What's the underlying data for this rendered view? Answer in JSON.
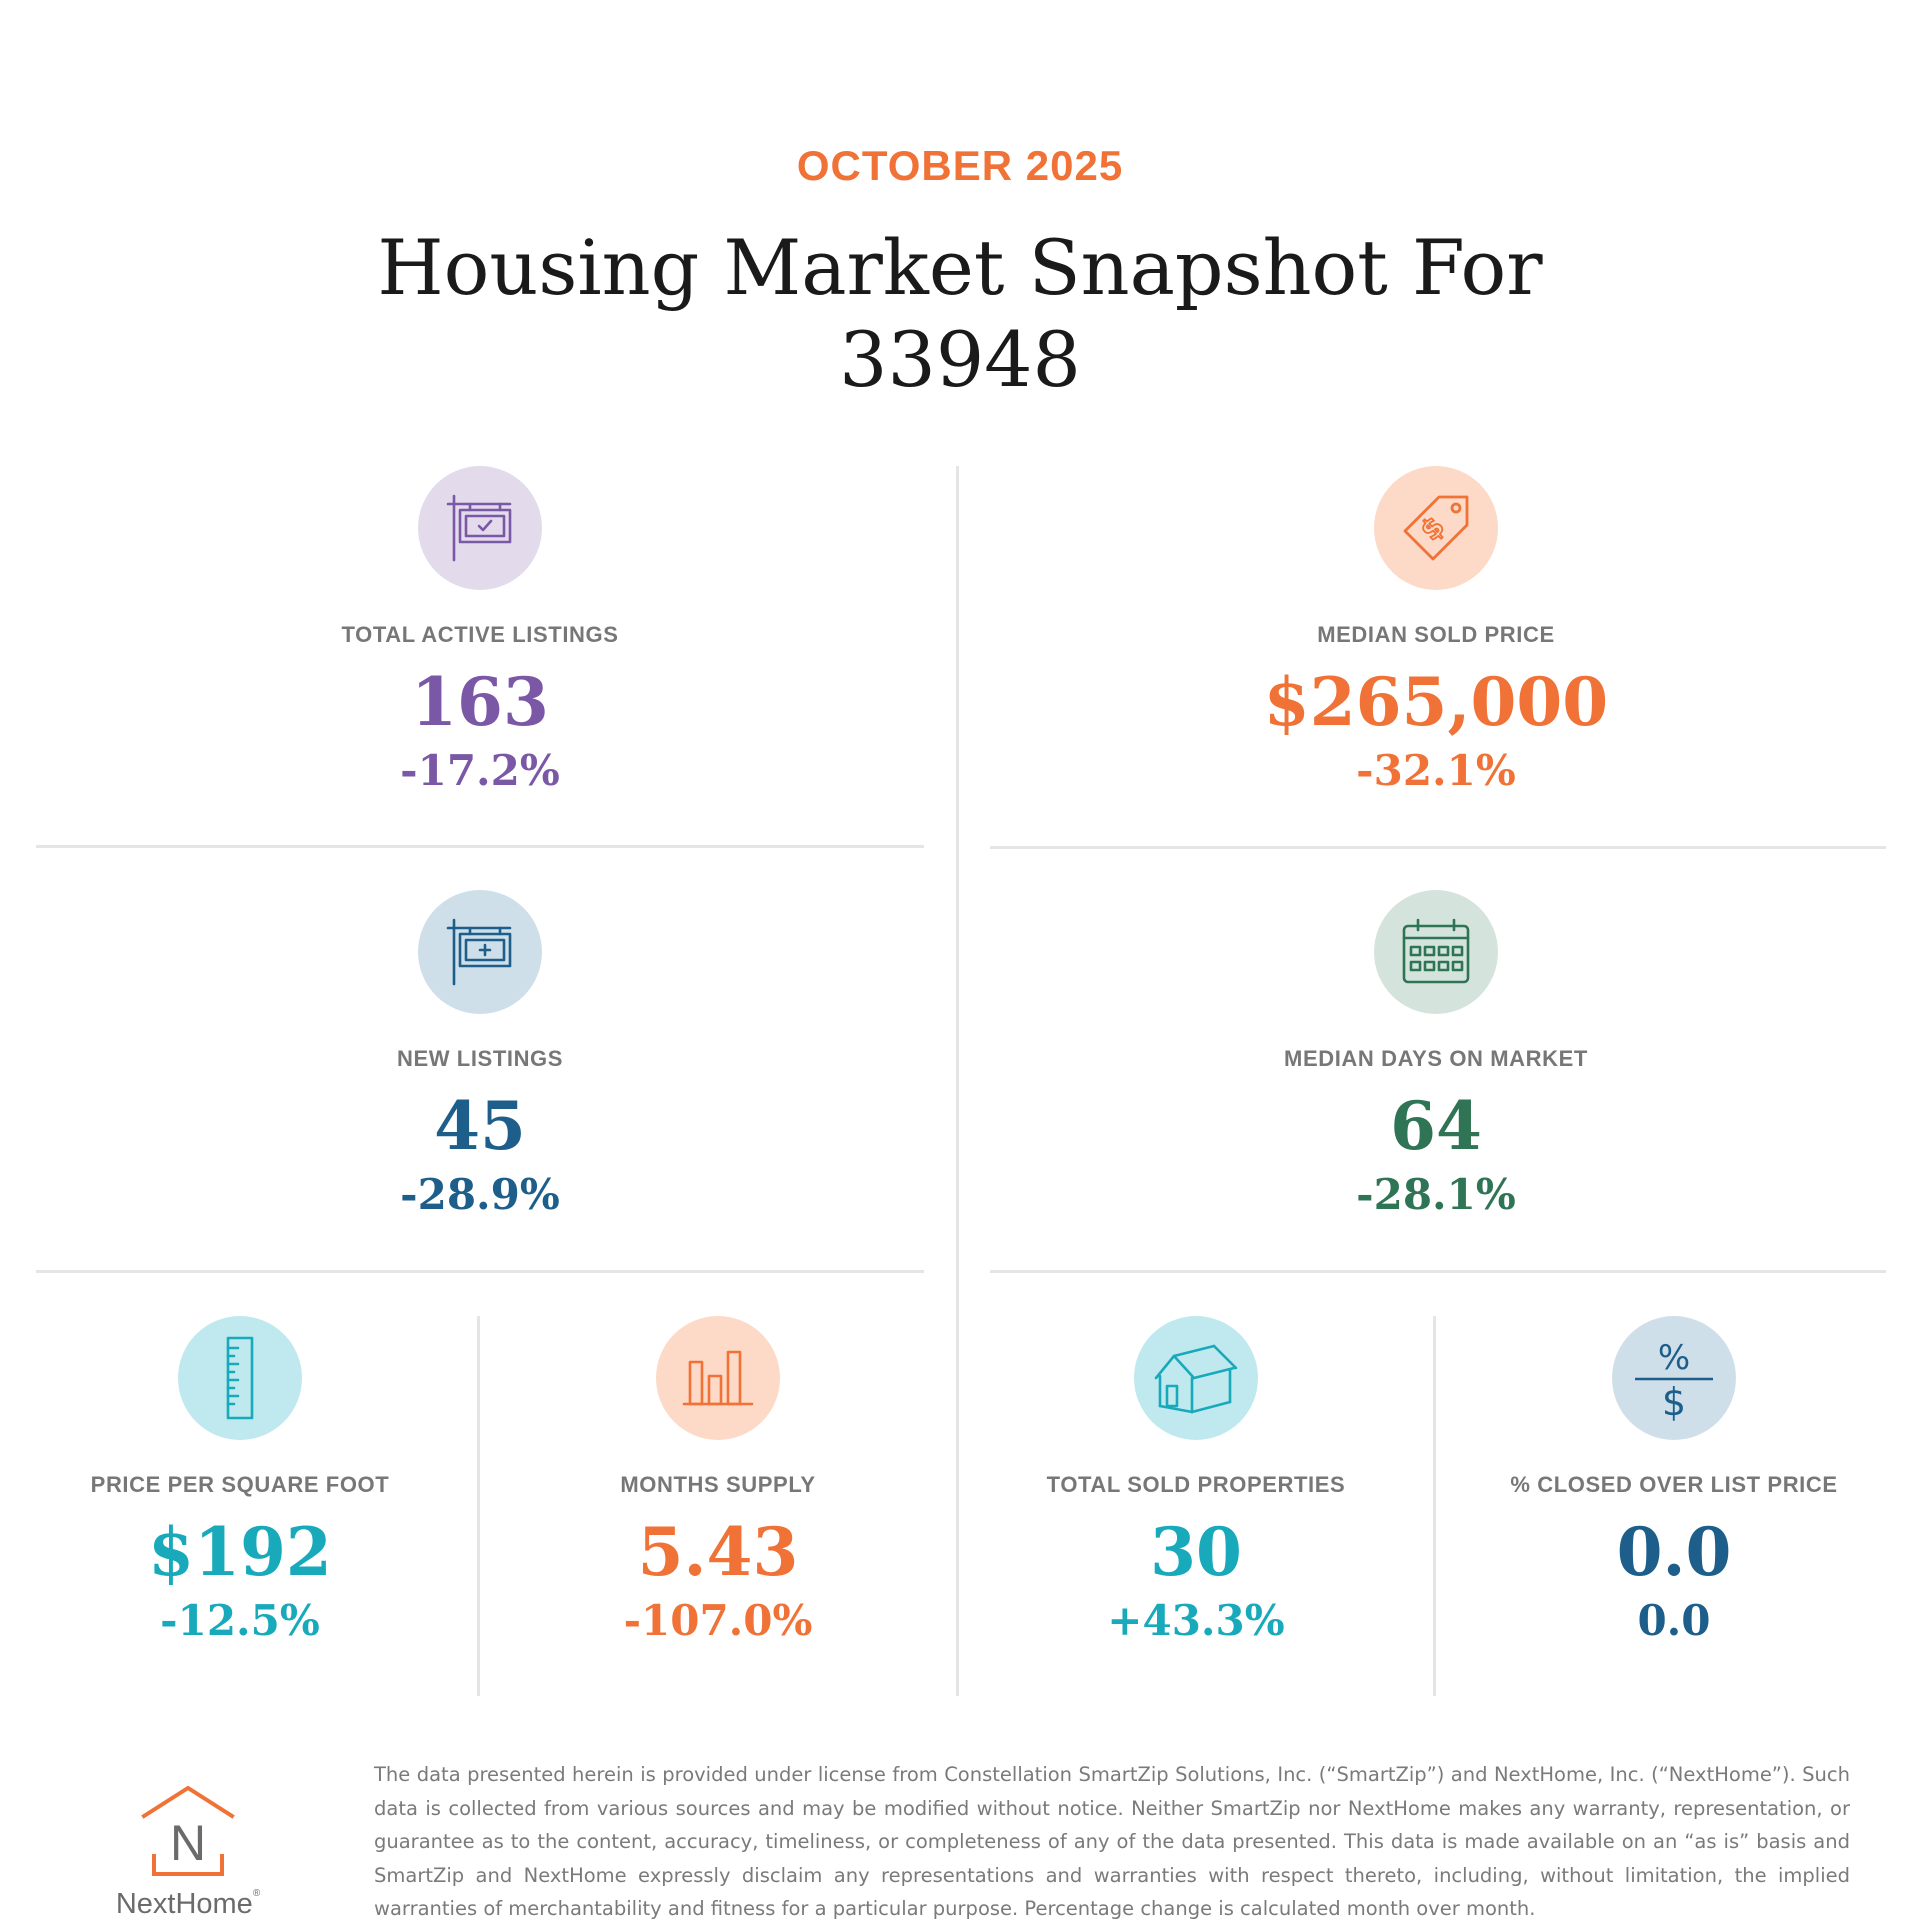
{
  "header": {
    "month": "OCTOBER 2025",
    "title": "Housing Market Snapshot For 33948"
  },
  "colors": {
    "accent_orange": "#f07236",
    "purple": "#7b58a6",
    "purple_bg": "#e3dbec",
    "orange_bg": "#fdd9c7",
    "blue": "#1d5f8a",
    "blue_bg": "#cfdfe9",
    "green": "#2f7454",
    "green_bg": "#d4e4dc",
    "teal": "#18a9bb",
    "teal_bg": "#bfe9ee"
  },
  "metrics": {
    "active_listings": {
      "icon": "for-sale-sign-check-icon",
      "label": "TOTAL ACTIVE LISTINGS",
      "value": "163",
      "change": "-17.2%"
    },
    "median_sold_price": {
      "icon": "price-tag-dollar-icon",
      "label": "MEDIAN SOLD PRICE",
      "value": "$265,000",
      "change": "-32.1%"
    },
    "new_listings": {
      "icon": "for-sale-sign-plus-icon",
      "label": "NEW LISTINGS",
      "value": "45",
      "change": "-28.9%"
    },
    "median_days": {
      "icon": "calendar-icon",
      "label": "MEDIAN DAYS ON MARKET",
      "value": "64",
      "change": "-28.1%"
    },
    "price_per_sqft": {
      "icon": "ruler-icon",
      "label": "PRICE PER SQUARE FOOT",
      "value": "$192",
      "change": "-12.5%"
    },
    "months_supply": {
      "icon": "bar-chart-icon",
      "label": "MONTHS SUPPLY",
      "value": "5.43",
      "change": "-107.0%"
    },
    "total_sold": {
      "icon": "house-icon",
      "label": "TOTAL SOLD PROPERTIES",
      "value": "30",
      "change": "+43.3%"
    },
    "closed_over_list": {
      "icon": "percent-over-dollar-icon",
      "label": "% CLOSED OVER LIST PRICE",
      "value": "0.0",
      "change": "0.0",
      "icon_top": "%",
      "icon_bottom": "$"
    }
  },
  "footer": {
    "logo_letter": "N",
    "logo_text": "NextHome",
    "logo_tm": "®",
    "disclaimer": "The data presented herein is provided under license from Constellation SmartZip Solutions, Inc. (“SmartZip”) and NextHome, Inc. (“NextHome”). Such data is collected from various sources and may be modified without notice. Neither SmartZip nor NextHome makes any warranty, representation, or guarantee as to the content, accuracy, timeliness, or completeness of any of the data presented. This data is made available on an “as is” basis and SmartZip and NextHome expressly disclaim any representations and warranties with respect thereto, including, without limitation, the implied warranties of merchantability and fitness for a particular purpose. Percentage change is calculated month over month."
  }
}
